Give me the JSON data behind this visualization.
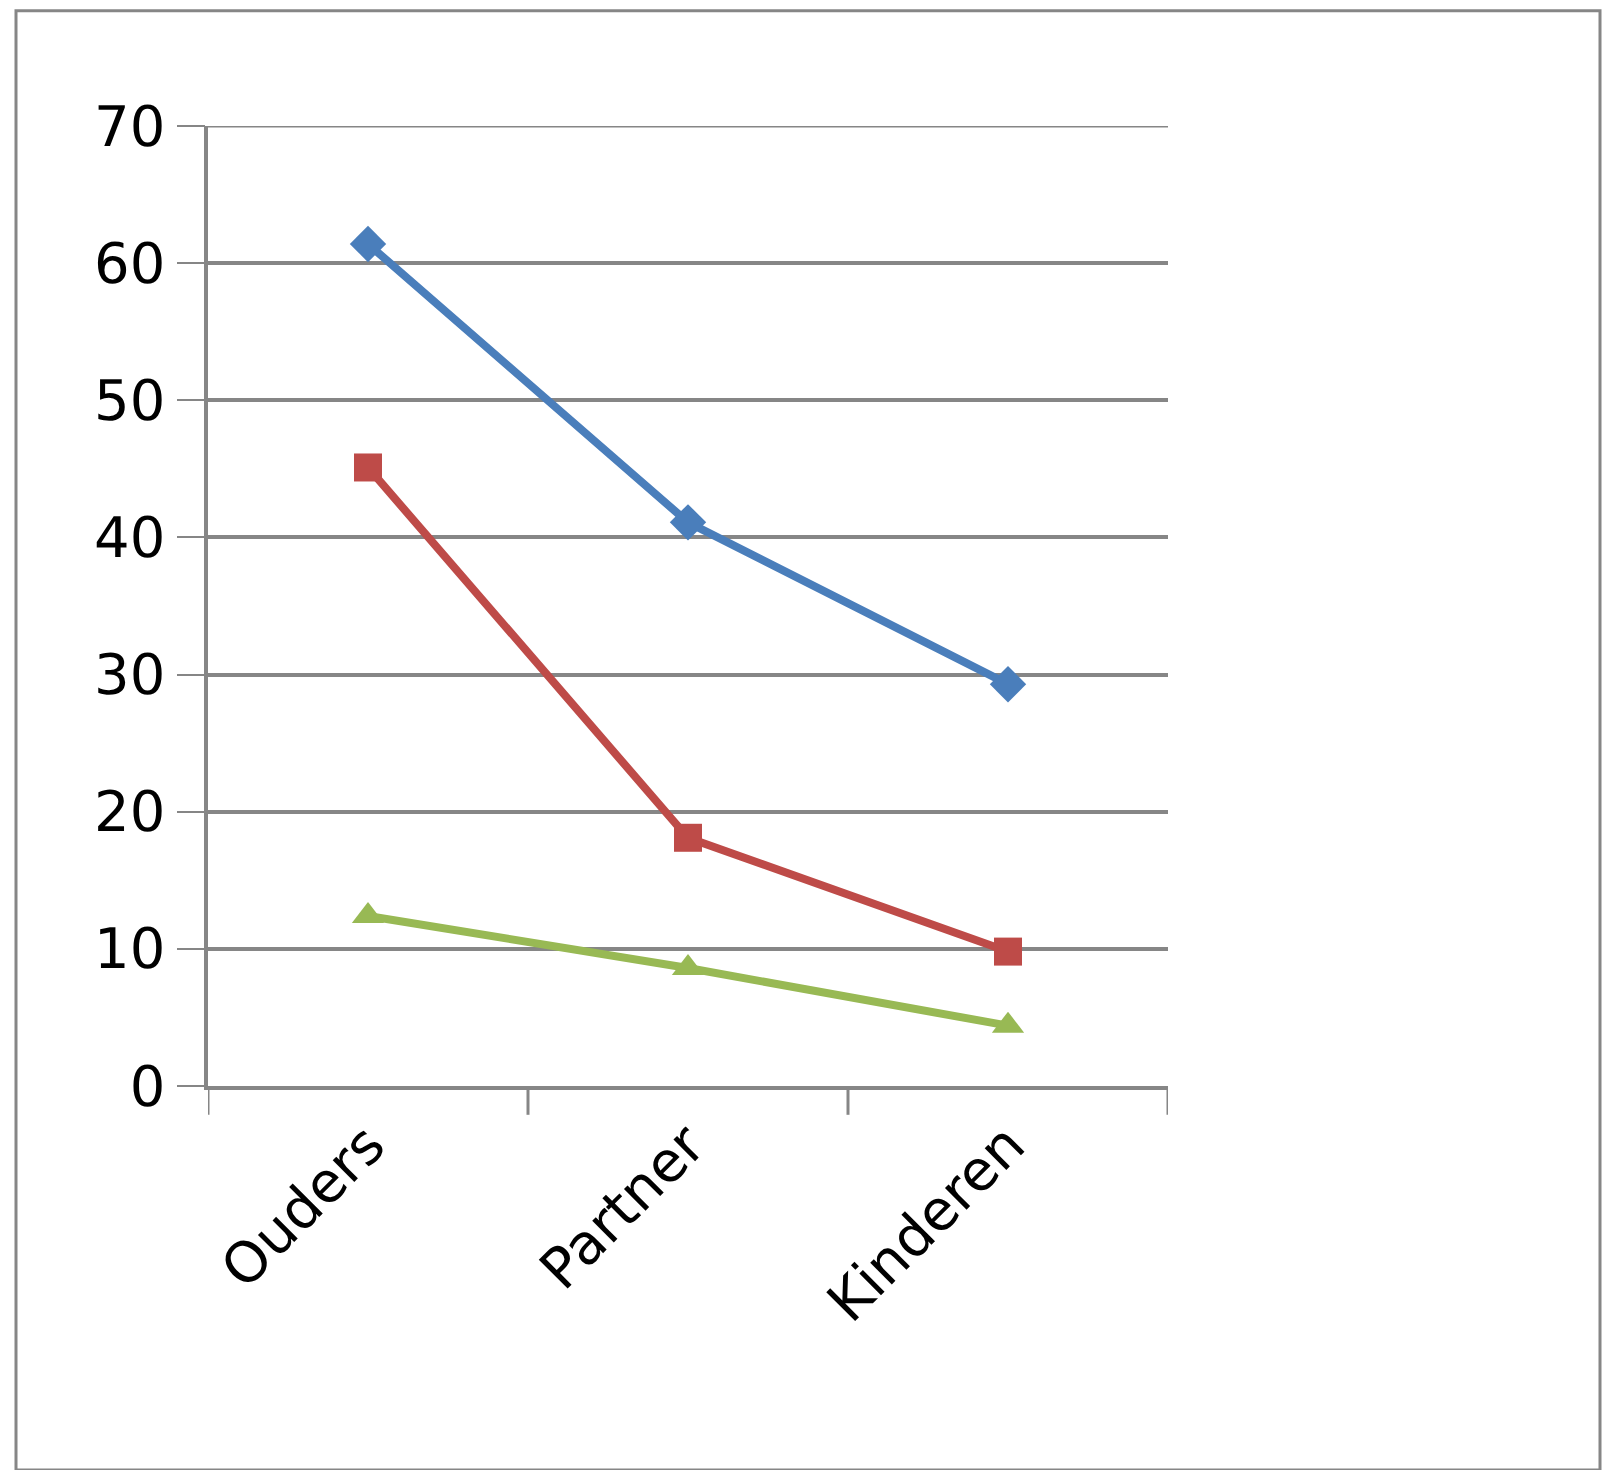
{
  "chart_data": {
    "type": "line",
    "categories": [
      "Ouders",
      "Partner",
      "Kinderen"
    ],
    "series": [
      {
        "color": "#4a7ebb",
        "marker": "diamond",
        "values": [
          61.4,
          41.1,
          29.3
        ]
      },
      {
        "color": "#be4b48",
        "marker": "square",
        "values": [
          45.1,
          18.1,
          9.8
        ]
      },
      {
        "color": "#98b954",
        "marker": "triangle",
        "values": [
          12.4,
          8.6,
          4.4
        ]
      }
    ],
    "ylim": [
      0,
      70
    ],
    "yticks": [
      0,
      10,
      20,
      30,
      40,
      50,
      60,
      70
    ],
    "grid": "y"
  }
}
